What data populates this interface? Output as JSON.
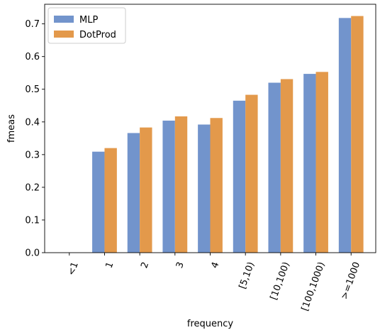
{
  "chart_data": {
    "type": "bar",
    "xlabel": "frequency",
    "ylabel": "fmeas",
    "ylim": [
      0,
      0.76
    ],
    "yticks": [
      0.0,
      0.1,
      0.2,
      0.3,
      0.4,
      0.5,
      0.6,
      0.7
    ],
    "ytick_labels": [
      "0.0",
      "0.1",
      "0.2",
      "0.3",
      "0.4",
      "0.5",
      "0.6",
      "0.7"
    ],
    "categories": [
      "<1",
      "1",
      "2",
      "3",
      "4",
      "[5,10)",
      "[10,100)",
      "[100,1000)",
      ">=1000"
    ],
    "series": [
      {
        "name": "MLP",
        "color": "#7294cc",
        "values": [
          0,
          0.309,
          0.366,
          0.404,
          0.392,
          0.465,
          0.52,
          0.547,
          0.718
        ]
      },
      {
        "name": "DotProd",
        "color": "#e3994b",
        "values": [
          0,
          0.32,
          0.383,
          0.417,
          0.412,
          0.483,
          0.531,
          0.553,
          0.724
        ]
      }
    ],
    "legend_position": "top-left",
    "grid": false
  }
}
